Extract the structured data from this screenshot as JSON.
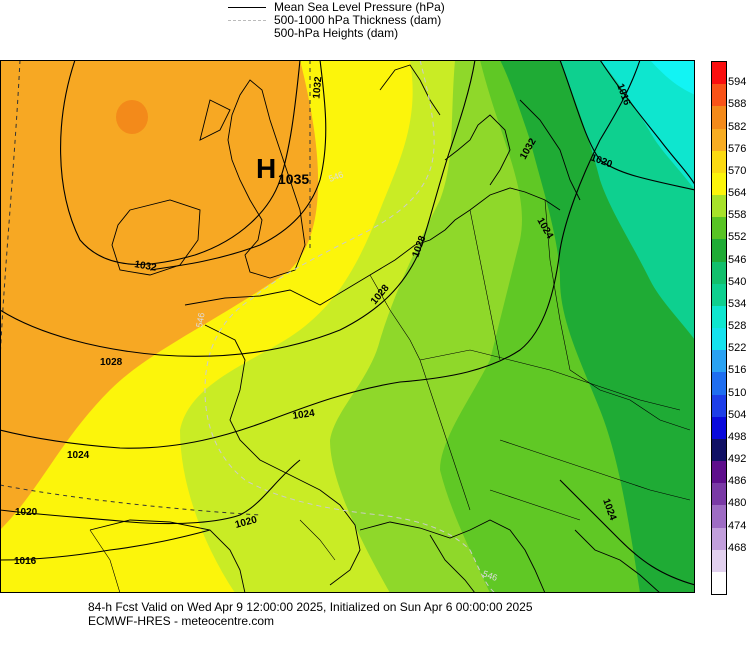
{
  "legend": {
    "items": [
      {
        "label": "Mean Sea Level Pressure (hPa)",
        "style": "solid",
        "color": "#000000"
      },
      {
        "label": "500-1000 hPa Thickness (dam)",
        "style": "dashed",
        "color": "#bbbbbb"
      },
      {
        "label": "500-hPa Heights (dam)",
        "style": "none",
        "color": "#000000"
      }
    ]
  },
  "map": {
    "high_center": {
      "symbol": "H",
      "value": "1035"
    },
    "isobar_labels": [
      "1032",
      "1032",
      "1028",
      "1028",
      "1024",
      "1024",
      "1020",
      "1020",
      "1016",
      "1016",
      "1020",
      "1024",
      "1024",
      "1028",
      "1032"
    ],
    "thickness_labels": [
      "546",
      "546",
      "546"
    ],
    "colors": {
      "ocean_orange": "#f7a823",
      "dark_orange": "#f38a1a",
      "yellow": "#fcf50b",
      "yellow_green": "#c9ec25",
      "light_green": "#8fd82a",
      "mid_green": "#60c825",
      "dark_green": "#1fab35",
      "teal": "#0ed08f",
      "aqua": "#0ee6cf",
      "cyan": "#12f4f4"
    }
  },
  "colorbar": {
    "labels": [
      "594",
      "588",
      "582",
      "576",
      "570",
      "564",
      "558",
      "552",
      "546",
      "540",
      "534",
      "528",
      "522",
      "516",
      "510",
      "504",
      "498",
      "492",
      "486",
      "480",
      "474",
      "468"
    ],
    "colors": [
      "#fa0f0f",
      "#f95318",
      "#f38a1a",
      "#f7ac22",
      "#fbda12",
      "#fcf50b",
      "#a7e22a",
      "#58c424",
      "#1fab35",
      "#12c06c",
      "#0ed08f",
      "#0ee6cf",
      "#15e2ee",
      "#2aa2f2",
      "#1f6ef0",
      "#1d3ee8",
      "#0a0adc",
      "#111164",
      "#5e0f8c",
      "#7a3aa6",
      "#9e6cc4",
      "#c29fdc",
      "#e2d1ef",
      "#ffffff"
    ]
  },
  "footer": {
    "line1": "84-h Fcst Valid on Wed Apr  9 12:00:00 2025, Initialized on Sun Apr  6 00:00:00 2025",
    "line2": "ECMWF-HRES  - meteocentre.com"
  }
}
